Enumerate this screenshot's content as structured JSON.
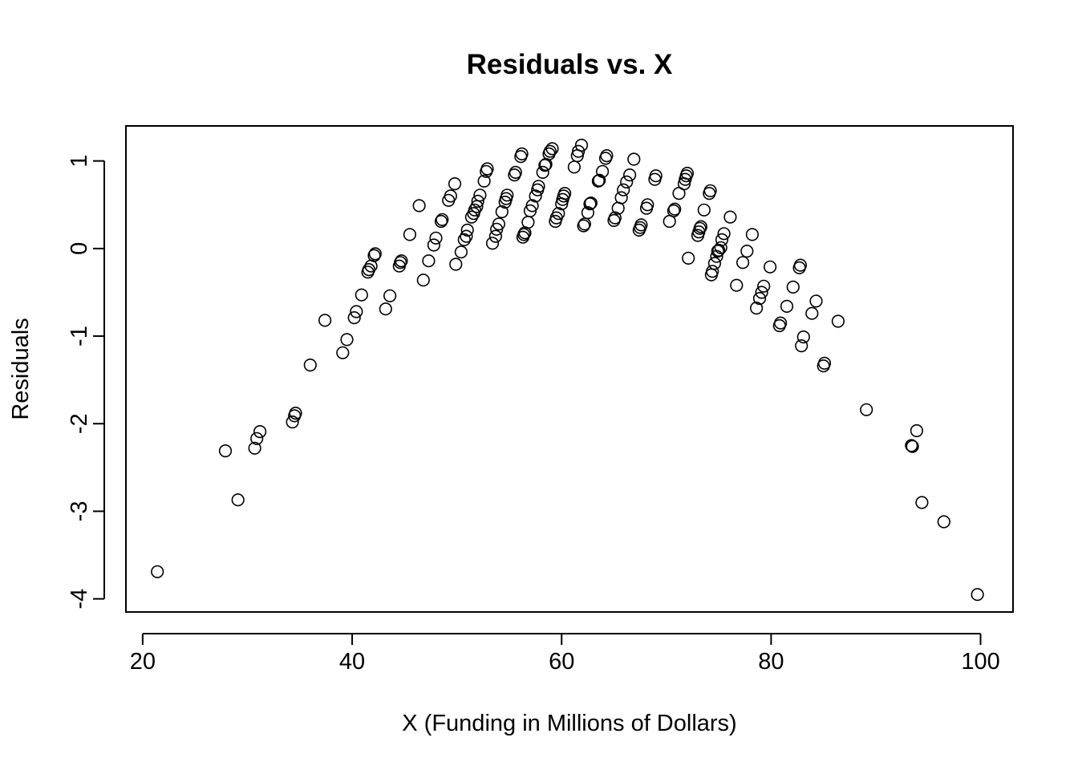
{
  "chart_data": {
    "type": "scatter",
    "title": "Residuals vs. X",
    "xlabel": "X (Funding in Millions of Dollars)",
    "ylabel": "Residuals",
    "xlim": [
      18.4,
      103.1
    ],
    "ylim": [
      -4.15,
      1.4
    ],
    "x_ticks": [
      20,
      40,
      60,
      80,
      100
    ],
    "x_tick_labels": [
      "20",
      "40",
      "60",
      "80",
      "100"
    ],
    "y_ticks": [
      -4,
      -3,
      -2,
      -1,
      0,
      1
    ],
    "y_tick_labels": [
      "-4",
      "-3",
      "-2",
      "-1",
      "0",
      "1"
    ],
    "grid": false,
    "legend": "none",
    "marker": "open-circle",
    "colors": {
      "marker": "#000000",
      "axes": "#000000",
      "background": "#ffffff"
    },
    "points": [
      [
        21.4,
        -3.69
      ],
      [
        27.9,
        -2.31
      ],
      [
        29.1,
        -2.87
      ],
      [
        30.7,
        -2.28
      ],
      [
        30.9,
        -2.17
      ],
      [
        31.2,
        -2.09
      ],
      [
        34.3,
        -1.98
      ],
      [
        34.5,
        -1.91
      ],
      [
        34.6,
        -1.88
      ],
      [
        36.0,
        -1.33
      ],
      [
        37.4,
        -0.82
      ],
      [
        39.1,
        -1.19
      ],
      [
        39.5,
        -1.04
      ],
      [
        40.2,
        -0.79
      ],
      [
        40.4,
        -0.72
      ],
      [
        40.9,
        -0.53
      ],
      [
        41.5,
        -0.27
      ],
      [
        41.6,
        -0.24
      ],
      [
        41.8,
        -0.2
      ],
      [
        42.1,
        -0.08
      ],
      [
        42.2,
        -0.06
      ],
      [
        43.2,
        -0.69
      ],
      [
        43.6,
        -0.54
      ],
      [
        44.5,
        -0.2
      ],
      [
        44.6,
        -0.16
      ],
      [
        44.7,
        -0.14
      ],
      [
        45.5,
        0.16
      ],
      [
        46.4,
        0.49
      ],
      [
        46.8,
        -0.36
      ],
      [
        47.3,
        -0.14
      ],
      [
        47.8,
        0.04
      ],
      [
        48.0,
        0.12
      ],
      [
        48.5,
        0.31
      ],
      [
        48.6,
        0.33
      ],
      [
        49.2,
        0.55
      ],
      [
        49.4,
        0.6
      ],
      [
        49.8,
        0.74
      ],
      [
        49.9,
        -0.18
      ],
      [
        50.4,
        -0.04
      ],
      [
        50.7,
        0.1
      ],
      [
        50.9,
        0.14
      ],
      [
        51.0,
        0.21
      ],
      [
        51.4,
        0.36
      ],
      [
        51.6,
        0.4
      ],
      [
        51.7,
        0.44
      ],
      [
        51.9,
        0.48
      ],
      [
        52.0,
        0.54
      ],
      [
        52.2,
        0.61
      ],
      [
        52.6,
        0.77
      ],
      [
        52.8,
        0.88
      ],
      [
        52.9,
        0.91
      ],
      [
        53.4,
        0.06
      ],
      [
        53.7,
        0.14
      ],
      [
        53.8,
        0.22
      ],
      [
        54.0,
        0.28
      ],
      [
        54.3,
        0.42
      ],
      [
        54.6,
        0.53
      ],
      [
        54.7,
        0.57
      ],
      [
        54.8,
        0.61
      ],
      [
        55.5,
        0.84
      ],
      [
        55.6,
        0.87
      ],
      [
        56.1,
        1.05
      ],
      [
        56.2,
        1.08
      ],
      [
        56.3,
        0.13
      ],
      [
        56.4,
        0.16
      ],
      [
        56.5,
        0.18
      ],
      [
        56.8,
        0.3
      ],
      [
        57.0,
        0.43
      ],
      [
        57.2,
        0.49
      ],
      [
        57.5,
        0.6
      ],
      [
        57.7,
        0.67
      ],
      [
        57.8,
        0.71
      ],
      [
        58.2,
        0.87
      ],
      [
        58.4,
        0.95
      ],
      [
        58.5,
        0.96
      ],
      [
        58.8,
        1.08
      ],
      [
        58.9,
        1.11
      ],
      [
        59.1,
        1.14
      ],
      [
        59.4,
        0.31
      ],
      [
        59.5,
        0.35
      ],
      [
        59.7,
        0.4
      ],
      [
        60.0,
        0.51
      ],
      [
        60.1,
        0.56
      ],
      [
        60.2,
        0.6
      ],
      [
        60.3,
        0.63
      ],
      [
        61.2,
        0.93
      ],
      [
        61.5,
        1.06
      ],
      [
        61.6,
        1.11
      ],
      [
        61.9,
        1.18
      ],
      [
        62.1,
        0.26
      ],
      [
        62.2,
        0.28
      ],
      [
        62.5,
        0.41
      ],
      [
        62.7,
        0.51
      ],
      [
        62.8,
        0.52
      ],
      [
        63.5,
        0.77
      ],
      [
        63.6,
        0.78
      ],
      [
        63.9,
        0.88
      ],
      [
        64.2,
        1.03
      ],
      [
        64.3,
        1.06
      ],
      [
        65.0,
        0.32
      ],
      [
        65.1,
        0.35
      ],
      [
        65.4,
        0.46
      ],
      [
        65.7,
        0.58
      ],
      [
        65.9,
        0.67
      ],
      [
        66.2,
        0.76
      ],
      [
        66.5,
        0.84
      ],
      [
        66.9,
        1.02
      ],
      [
        67.4,
        0.21
      ],
      [
        67.5,
        0.24
      ],
      [
        67.6,
        0.27
      ],
      [
        68.1,
        0.46
      ],
      [
        68.2,
        0.5
      ],
      [
        68.9,
        0.79
      ],
      [
        69.0,
        0.83
      ],
      [
        70.3,
        0.31
      ],
      [
        70.7,
        0.43
      ],
      [
        70.8,
        0.45
      ],
      [
        71.2,
        0.63
      ],
      [
        71.7,
        0.74
      ],
      [
        71.8,
        0.79
      ],
      [
        71.9,
        0.83
      ],
      [
        72.0,
        0.86
      ],
      [
        72.1,
        -0.11
      ],
      [
        73.0,
        0.15
      ],
      [
        73.1,
        0.19
      ],
      [
        73.2,
        0.23
      ],
      [
        73.3,
        0.25
      ],
      [
        73.6,
        0.44
      ],
      [
        74.1,
        0.63
      ],
      [
        74.2,
        0.66
      ],
      [
        74.3,
        -0.3
      ],
      [
        74.4,
        -0.26
      ],
      [
        74.6,
        -0.17
      ],
      [
        74.8,
        -0.09
      ],
      [
        74.9,
        -0.03
      ],
      [
        75.0,
        -0.02
      ],
      [
        75.2,
        0.01
      ],
      [
        75.3,
        0.1
      ],
      [
        75.5,
        0.17
      ],
      [
        76.1,
        0.36
      ],
      [
        76.7,
        -0.42
      ],
      [
        77.3,
        -0.16
      ],
      [
        77.7,
        -0.03
      ],
      [
        78.2,
        0.16
      ],
      [
        78.6,
        -0.68
      ],
      [
        78.9,
        -0.57
      ],
      [
        79.1,
        -0.5
      ],
      [
        79.3,
        -0.43
      ],
      [
        79.9,
        -0.21
      ],
      [
        80.8,
        -0.88
      ],
      [
        80.9,
        -0.85
      ],
      [
        81.5,
        -0.66
      ],
      [
        82.1,
        -0.44
      ],
      [
        82.7,
        -0.22
      ],
      [
        82.8,
        -0.19
      ],
      [
        82.9,
        -1.11
      ],
      [
        83.1,
        -1.01
      ],
      [
        83.9,
        -0.74
      ],
      [
        84.3,
        -0.6
      ],
      [
        85.0,
        -1.34
      ],
      [
        85.1,
        -1.31
      ],
      [
        86.4,
        -0.83
      ],
      [
        89.1,
        -1.84
      ],
      [
        93.4,
        -2.25
      ],
      [
        93.5,
        -2.26
      ],
      [
        93.9,
        -2.08
      ],
      [
        94.4,
        -2.9
      ],
      [
        96.5,
        -3.12
      ],
      [
        99.7,
        -3.95
      ]
    ]
  }
}
